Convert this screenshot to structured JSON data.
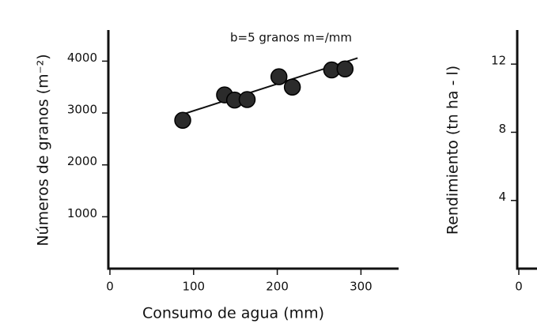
{
  "chart_data": [
    {
      "type": "scatter",
      "annotation": "b=5 granos m=/mm",
      "x_label": "Consumo de agua (mm)",
      "y_label": "Números de granos (m⁻²)",
      "x": [
        87,
        137,
        149,
        164,
        202,
        218,
        265,
        281
      ],
      "values": [
        2860,
        3350,
        3250,
        3260,
        3700,
        3500,
        3830,
        3850
      ],
      "color": "#2b2b2b",
      "fit": {
        "x": [
          86,
          296
        ],
        "y": [
          2970,
          4060
        ]
      },
      "xlim": [
        0,
        345
      ],
      "xticks": [
        0,
        100,
        200,
        300
      ],
      "ylim": [
        0,
        4600
      ],
      "yticks": [
        1000,
        2000,
        3000,
        4000
      ]
    },
    {
      "type": "axes",
      "y_label": "Rendimiento  (tn ha - l)",
      "xlim": [
        0,
        300
      ],
      "xticks": [
        0
      ],
      "ylim": [
        0,
        14
      ],
      "yticks": [
        4,
        8,
        12
      ]
    }
  ]
}
